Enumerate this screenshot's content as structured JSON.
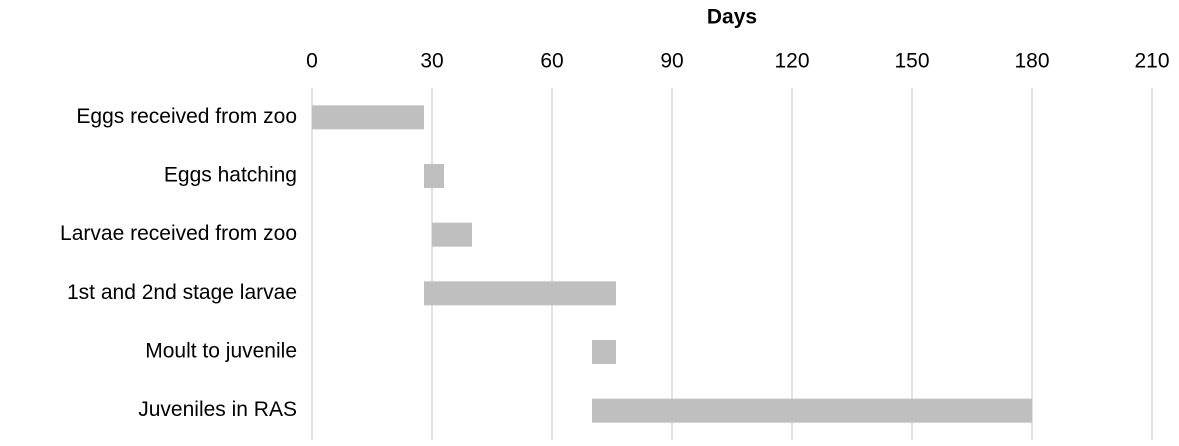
{
  "chart_data": {
    "type": "gantt",
    "title": "Days",
    "categories": [
      "Eggs received from zoo",
      "Eggs hatching",
      "Larvae received from zoo",
      "1st and 2nd stage larvae",
      "Moult to juvenile",
      "Juveniles in RAS"
    ],
    "starts": [
      0,
      28,
      30,
      28,
      70,
      70
    ],
    "ends": [
      28,
      33,
      40,
      76,
      76,
      180
    ],
    "color": "#bfbfbf",
    "xlim": [
      0,
      210
    ],
    "xticks": [
      0,
      30,
      60,
      90,
      120,
      150,
      180,
      210
    ],
    "grid": true
  }
}
